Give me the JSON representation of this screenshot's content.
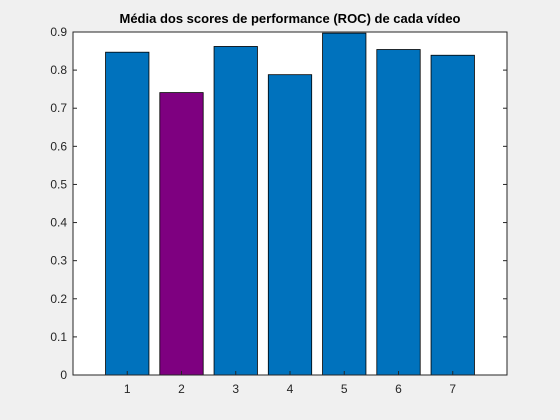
{
  "chart_data": {
    "type": "bar",
    "title": "Média dos scores de performance (ROC) de cada vídeo",
    "xlabel": "",
    "ylabel": "",
    "categories": [
      "1",
      "2",
      "3",
      "4",
      "5",
      "6",
      "7"
    ],
    "values": [
      0.847,
      0.741,
      0.862,
      0.788,
      0.897,
      0.854,
      0.839
    ],
    "bar_colors": [
      "#0072BD",
      "#7E0080",
      "#0072BD",
      "#0072BD",
      "#0072BD",
      "#0072BD",
      "#0072BD"
    ],
    "ylim": [
      0,
      0.9
    ],
    "xlim": [
      0,
      8
    ],
    "yticks": [
      "0",
      "0.1",
      "0.2",
      "0.3",
      "0.4",
      "0.5",
      "0.6",
      "0.7",
      "0.8",
      "0.9"
    ],
    "ytick_values": [
      0,
      0.1,
      0.2,
      0.3,
      0.4,
      0.5,
      0.6,
      0.7,
      0.8,
      0.9
    ],
    "grid": false,
    "legend": "none"
  }
}
